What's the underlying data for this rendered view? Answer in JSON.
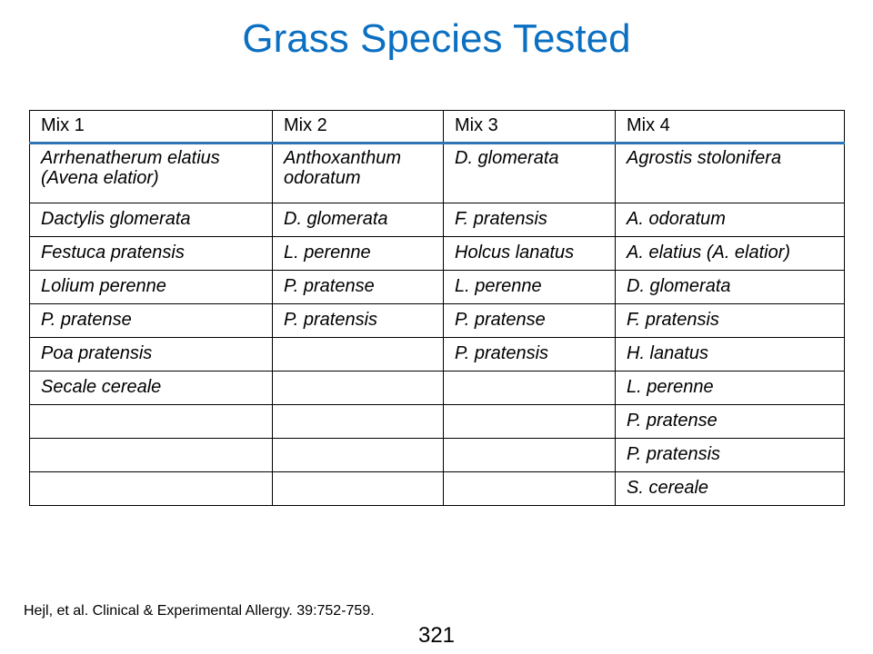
{
  "slide": {
    "title": "Grass Species Tested",
    "citation": "Hejl, et al. Clinical & Experimental Allergy. 39:752-759.",
    "page_number": "321"
  },
  "table": {
    "headers": [
      "Mix 1",
      "Mix 2",
      "Mix 3",
      "Mix 4"
    ],
    "rows": [
      [
        "Arrhenatherum elatius (Avena elatior)",
        "Anthoxanthum odoratum",
        "D. glomerata",
        "Agrostis stolonifera"
      ],
      [
        "Dactylis glomerata",
        "D. glomerata",
        "F. pratensis",
        "A. odoratum"
      ],
      [
        "Festuca pratensis",
        "L. perenne",
        "Holcus lanatus",
        "A. elatius (A. elatior)"
      ],
      [
        "Lolium perenne",
        "P. pratense",
        "L. perenne",
        "D. glomerata"
      ],
      [
        "P. pratense",
        "P. pratensis",
        "P. pratense",
        "F. pratensis"
      ],
      [
        "Poa pratensis",
        "",
        "P. pratensis",
        "H. lanatus"
      ],
      [
        "Secale cereale",
        "",
        "",
        "L. perenne"
      ],
      [
        "",
        "",
        "",
        "P. pratense"
      ],
      [
        "",
        "",
        "",
        "P. pratensis"
      ],
      [
        "",
        "",
        "",
        "S. cereale"
      ]
    ]
  }
}
